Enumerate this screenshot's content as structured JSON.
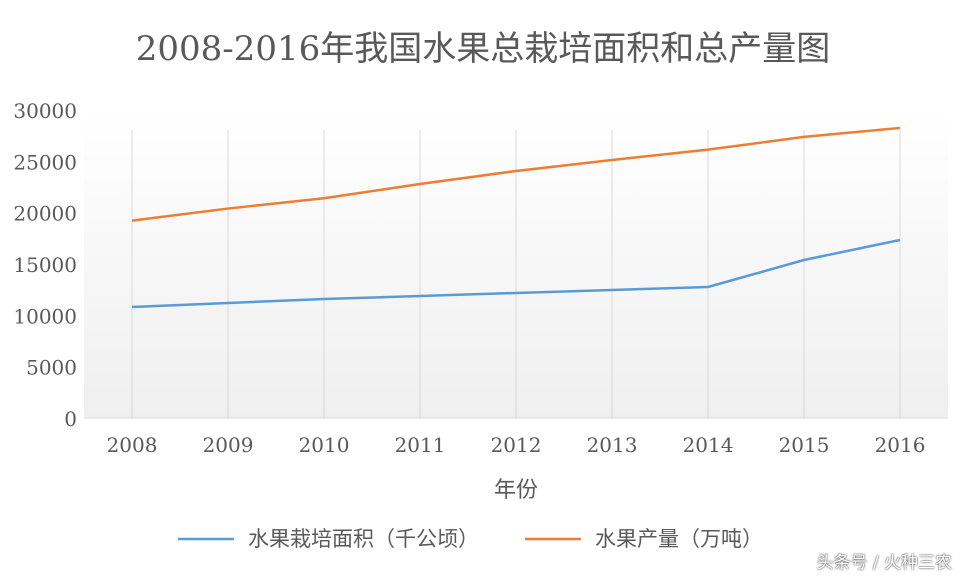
{
  "chart_data": {
    "type": "line",
    "title": "2008-2016年我国水果总栽培面积和总产量图",
    "xlabel": "年份",
    "ylabel": "",
    "categories": [
      "2008",
      "2009",
      "2010",
      "2011",
      "2012",
      "2013",
      "2014",
      "2015",
      "2016"
    ],
    "ylim": [
      0,
      30000
    ],
    "yticks": [
      0,
      5000,
      10000,
      15000,
      20000,
      25000,
      30000
    ],
    "grid": "vertical",
    "legend": "bottom",
    "series": [
      {
        "name": "水果栽培面积（千公顷）",
        "color": "#5b9bd5",
        "values": [
          10810,
          11200,
          11590,
          11880,
          12180,
          12470,
          12760,
          15390,
          17340
        ]
      },
      {
        "name": "水果产量（万吨）",
        "color": "#ed7d31",
        "values": [
          19220,
          20400,
          21400,
          22790,
          24060,
          25130,
          26140,
          27380,
          28250
        ]
      }
    ]
  },
  "watermark": "头条号 / 火种三农"
}
